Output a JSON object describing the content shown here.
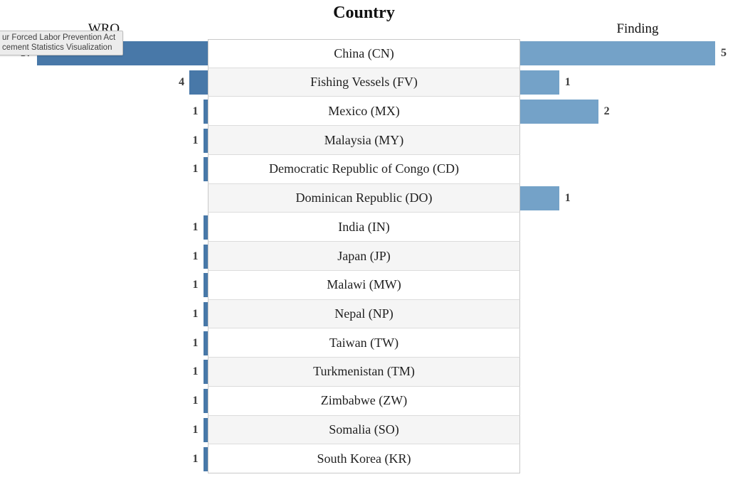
{
  "tooltip": {
    "lines": [
      "ur Forced Labor Prevention Act",
      "cement Statistics Visualization"
    ]
  },
  "chart_data": {
    "type": "bar",
    "variant": "bidirectional-horizontal",
    "title": "Country",
    "left_axis_label": "WRO",
    "right_axis_label": "Finding",
    "categories": [
      "China (CN)",
      "Fishing Vessels (FV)",
      "Mexico (MX)",
      "Malaysia (MY)",
      "Democratic Republic of Congo (CD)",
      "Dominican Republic (DO)",
      "India (IN)",
      "Japan (JP)",
      "Malawi (MW)",
      "Nepal (NP)",
      "Taiwan (TW)",
      "Turkmenistan (TM)",
      "Zimbabwe (ZW)",
      "Somalia (SO)",
      "South Korea (KR)"
    ],
    "series": [
      {
        "name": "WRO",
        "side": "left",
        "color": "#4878a8",
        "values": [
          37,
          4,
          1,
          1,
          1,
          null,
          1,
          1,
          1,
          1,
          1,
          1,
          1,
          1,
          1
        ]
      },
      {
        "name": "Finding",
        "side": "right",
        "color": "#74a2c8",
        "values": [
          5,
          1,
          2,
          null,
          null,
          1,
          null,
          null,
          null,
          null,
          null,
          null,
          null,
          null,
          null
        ]
      }
    ],
    "left_max": 37,
    "right_max": 5,
    "value_labels_shown": true,
    "legend": "none",
    "grid": "off",
    "row_stripes": true
  }
}
